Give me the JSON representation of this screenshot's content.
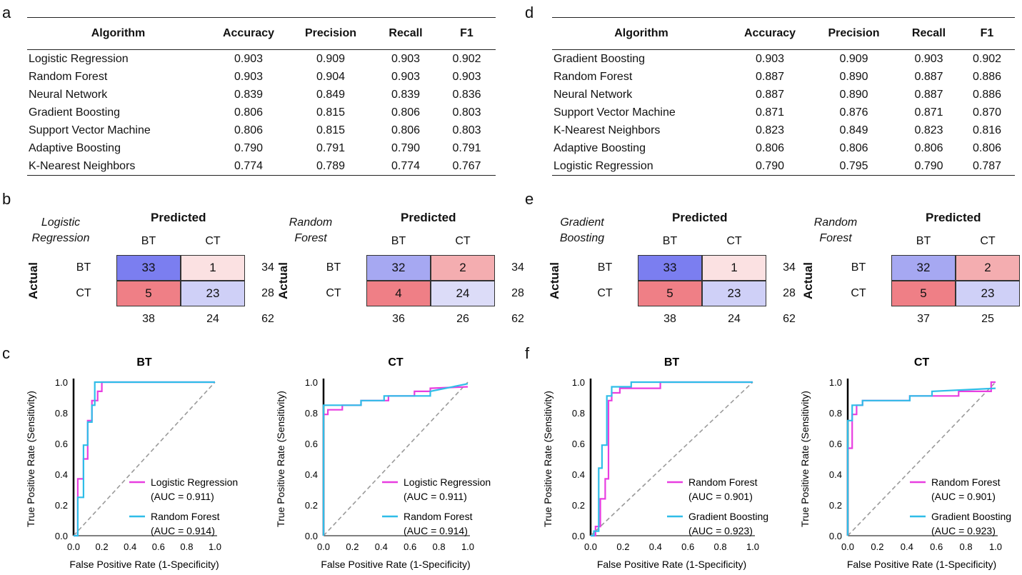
{
  "panels": {
    "a": "a",
    "b": "b",
    "c": "c",
    "d": "d",
    "e": "e",
    "f": "f"
  },
  "tables": [
    {
      "headers": [
        "Algorithm",
        "Accuracy",
        "Precision",
        "Recall",
        "F1"
      ],
      "rows": [
        [
          "Logistic Regression",
          "0.903",
          "0.909",
          "0.903",
          "0.902"
        ],
        [
          "Random Forest",
          "0.903",
          "0.904",
          "0.903",
          "0.903"
        ],
        [
          "Neural Network",
          "0.839",
          "0.849",
          "0.839",
          "0.836"
        ],
        [
          "Gradient Boosting",
          "0.806",
          "0.815",
          "0.806",
          "0.803"
        ],
        [
          "Support Vector Machine",
          "0.806",
          "0.815",
          "0.806",
          "0.803"
        ],
        [
          "Adaptive Boosting",
          "0.790",
          "0.791",
          "0.790",
          "0.791"
        ],
        [
          "K-Nearest Neighbors",
          "0.774",
          "0.789",
          "0.774",
          "0.767"
        ]
      ]
    },
    {
      "headers": [
        "Algorithm",
        "Accuracy",
        "Precision",
        "Recall",
        "F1"
      ],
      "rows": [
        [
          "Gradient Boosting",
          "0.903",
          "0.909",
          "0.903",
          "0.902"
        ],
        [
          "Random Forest",
          "0.887",
          "0.890",
          "0.887",
          "0.886"
        ],
        [
          "Neural Network",
          "0.887",
          "0.890",
          "0.887",
          "0.886"
        ],
        [
          "Support Vector Machine",
          "0.871",
          "0.876",
          "0.871",
          "0.870"
        ],
        [
          "K-Nearest Neighbors",
          "0.823",
          "0.849",
          "0.823",
          "0.816"
        ],
        [
          "Adaptive Boosting",
          "0.806",
          "0.806",
          "0.806",
          "0.806"
        ],
        [
          "Logistic Regression",
          "0.790",
          "0.795",
          "0.790",
          "0.787"
        ]
      ]
    }
  ],
  "confusion_common": {
    "predicted": "Predicted",
    "actual": "Actual",
    "classes": [
      "BT",
      "CT"
    ]
  },
  "confusion": [
    {
      "model": [
        "Logistic",
        "Regression"
      ],
      "cells": [
        [
          "33",
          "1"
        ],
        [
          "5",
          "23"
        ]
      ],
      "row_totals": [
        "34",
        "28"
      ],
      "col_totals": [
        "38",
        "24"
      ],
      "total": "62"
    },
    {
      "model": [
        "Random",
        "Forest"
      ],
      "cells": [
        [
          "32",
          "2"
        ],
        [
          "4",
          "24"
        ]
      ],
      "row_totals": [
        "34",
        "28"
      ],
      "col_totals": [
        "36",
        "26"
      ],
      "total": "62"
    },
    {
      "model": [
        "Gradient",
        "Boosting"
      ],
      "cells": [
        [
          "33",
          "1"
        ],
        [
          "5",
          "23"
        ]
      ],
      "row_totals": [
        "34",
        "28"
      ],
      "col_totals": [
        "38",
        "24"
      ],
      "total": "62"
    },
    {
      "model": [
        "Random",
        "Forest"
      ],
      "cells": [
        [
          "32",
          "2"
        ],
        [
          "5",
          "23"
        ]
      ],
      "row_totals": [
        "34",
        "28"
      ],
      "col_totals": [
        "37",
        "25"
      ],
      "total": "62"
    }
  ],
  "colors": {
    "blue_strong": "#7b7ef0",
    "blue_mid": "#a6a8f2",
    "blue_light": "#cfd0f7",
    "blue_pale": "#dcdcf8",
    "red_strong": "#ef7f86",
    "red_mid": "#f4adb0",
    "red_pale": "#fbe1e2",
    "magenta": "#e83ee0",
    "cyan": "#2fbde8",
    "diagonal": "#9a9a9a"
  },
  "chart_data": [
    {
      "type": "line",
      "title": "BT",
      "xlabel": "False Positive Rate (1-Specificity)",
      "ylabel": "True Positive Rate (Sensitivity)",
      "xlim": [
        0,
        1
      ],
      "ylim": [
        0,
        1
      ],
      "xticks": [
        "0.0",
        "0.2",
        "0.4",
        "0.6",
        "0.8",
        "1.0"
      ],
      "yticks": [
        "0.0",
        "0.2",
        "0.4",
        "0.6",
        "0.8",
        "1.0"
      ],
      "legend": "bottom-right",
      "series": [
        {
          "name": "Logistic Regression",
          "auc_label": "(AUC = 0.911)",
          "color": "magenta",
          "x": [
            0,
            0.03,
            0.03,
            0.07,
            0.07,
            0.1,
            0.1,
            0.13,
            0.13,
            0.17,
            0.17,
            0.2,
            0.2,
            1.0
          ],
          "y": [
            0,
            0,
            0.37,
            0.37,
            0.5,
            0.5,
            0.75,
            0.75,
            0.88,
            0.88,
            0.94,
            0.94,
            1.0,
            1.0
          ]
        },
        {
          "name": "Random Forest",
          "auc_label": "(AUC = 0.914)",
          "color": "cyan",
          "x": [
            0,
            0.03,
            0.03,
            0.07,
            0.07,
            0.1,
            0.1,
            0.13,
            0.13,
            0.15,
            0.15,
            1.0
          ],
          "y": [
            0,
            0,
            0.25,
            0.25,
            0.59,
            0.59,
            0.74,
            0.74,
            0.85,
            0.85,
            1.0,
            1.0
          ]
        }
      ]
    },
    {
      "type": "line",
      "title": "CT",
      "xlabel": "False Positive Rate (1-Specificity)",
      "ylabel": "True Positive Rate (Sensitivity)",
      "xlim": [
        0,
        1
      ],
      "ylim": [
        0,
        1
      ],
      "xticks": [
        "0.0",
        "0.2",
        "0.4",
        "0.6",
        "0.8",
        "1.0"
      ],
      "yticks": [
        "0.0",
        "0.2",
        "0.4",
        "0.6",
        "0.8",
        "1.0"
      ],
      "legend": "bottom-right",
      "series": [
        {
          "name": "Logistic Regression",
          "auc_label": "(AUC = 0.911)",
          "color": "magenta",
          "x": [
            0,
            0.0,
            0.03,
            0.03,
            0.13,
            0.13,
            0.26,
            0.26,
            0.45,
            0.45,
            0.63,
            0.63,
            0.74,
            0.74,
            1.0
          ],
          "y": [
            0,
            0.79,
            0.79,
            0.82,
            0.82,
            0.85,
            0.85,
            0.88,
            0.88,
            0.91,
            0.91,
            0.94,
            0.94,
            0.96,
            0.97
          ]
        },
        {
          "name": "Random Forest",
          "auc_label": "(AUC = 0.914)",
          "color": "cyan",
          "x": [
            0,
            0.0,
            0.26,
            0.26,
            0.42,
            0.42,
            0.74,
            0.74,
            1.0
          ],
          "y": [
            0,
            0.85,
            0.85,
            0.88,
            0.88,
            0.91,
            0.91,
            0.94,
            0.99
          ]
        }
      ]
    },
    {
      "type": "line",
      "title": "BT",
      "xlabel": "False Positive Rate (1-Specificity)",
      "ylabel": "True Positive Rate (Sensitivity)",
      "xlim": [
        0,
        1
      ],
      "ylim": [
        0,
        1
      ],
      "xticks": [
        "0.0",
        "0.2",
        "0.4",
        "0.6",
        "0.8",
        "1.0"
      ],
      "yticks": [
        "0.0",
        "0.2",
        "0.4",
        "0.6",
        "0.8",
        "1.0"
      ],
      "legend": "bottom-right",
      "series": [
        {
          "name": "Random Forest",
          "auc_label": "(AUC = 0.901)",
          "color": "magenta",
          "x": [
            0,
            0.03,
            0.03,
            0.06,
            0.06,
            0.09,
            0.09,
            0.11,
            0.11,
            0.13,
            0.13,
            0.18,
            0.18,
            0.43,
            0.43,
            1.0
          ],
          "y": [
            0,
            0,
            0.06,
            0.06,
            0.24,
            0.24,
            0.37,
            0.37,
            0.88,
            0.88,
            0.93,
            0.93,
            0.96,
            0.96,
            1.0,
            1.0
          ]
        },
        {
          "name": "Gradient Boosting",
          "auc_label": "(AUC = 0.923)",
          "color": "cyan",
          "x": [
            0,
            0.02,
            0.02,
            0.05,
            0.05,
            0.07,
            0.07,
            0.1,
            0.1,
            0.13,
            0.13,
            0.25,
            0.25,
            1.0
          ],
          "y": [
            0,
            0,
            0.03,
            0.03,
            0.44,
            0.44,
            0.59,
            0.59,
            0.91,
            0.91,
            0.97,
            0.97,
            1.0,
            1.0
          ]
        }
      ]
    },
    {
      "type": "line",
      "title": "CT",
      "xlabel": "False Positive Rate (1-Specificity)",
      "ylabel": "True Positive Rate (Sensitivity)",
      "xlim": [
        0,
        1
      ],
      "ylim": [
        0,
        1
      ],
      "xticks": [
        "0.0",
        "0.2",
        "0.4",
        "0.6",
        "0.8",
        "1.0"
      ],
      "yticks": [
        "0.0",
        "0.2",
        "0.4",
        "0.6",
        "0.8",
        "1.0"
      ],
      "legend": "bottom-right",
      "series": [
        {
          "name": "Random Forest",
          "auc_label": "(AUC = 0.901)",
          "color": "magenta",
          "x": [
            0,
            0.0,
            0.03,
            0.03,
            0.06,
            0.06,
            0.1,
            0.1,
            0.42,
            0.42,
            0.75,
            0.75,
            0.97,
            0.97,
            1.0
          ],
          "y": [
            0,
            0.57,
            0.57,
            0.79,
            0.79,
            0.85,
            0.85,
            0.88,
            0.88,
            0.91,
            0.91,
            0.94,
            0.94,
            1.0,
            1.0
          ]
        },
        {
          "name": "Gradient Boosting",
          "auc_label": "(AUC = 0.923)",
          "color": "cyan",
          "x": [
            0,
            0.0,
            0.03,
            0.03,
            0.1,
            0.1,
            0.42,
            0.42,
            0.57,
            0.57,
            1.0
          ],
          "y": [
            0,
            0.75,
            0.75,
            0.85,
            0.85,
            0.88,
            0.88,
            0.91,
            0.91,
            0.94,
            0.96
          ]
        }
      ]
    }
  ]
}
